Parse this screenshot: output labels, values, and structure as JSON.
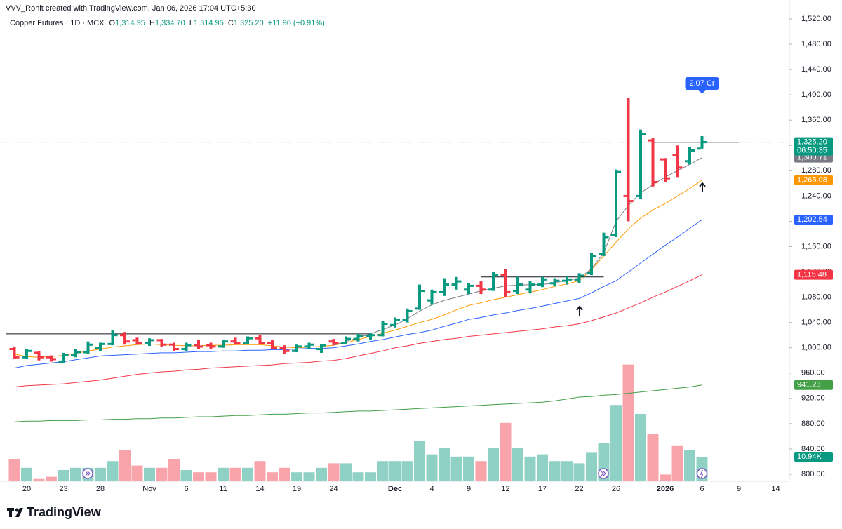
{
  "chart_data": {
    "type": "ohlc",
    "credit": "VVV_Rohit created with TradingView.com, Jan 06, 2026 17:04 UTC+5:30",
    "legend": {
      "symbol": "Copper Futures · 1D · MCX",
      "items": [
        {
          "key": "O",
          "value": "1,314.95"
        },
        {
          "key": "H",
          "value": "1,334.70"
        },
        {
          "key": "L",
          "value": "1,314.95"
        },
        {
          "key": "C",
          "value": "1,325.20"
        }
      ],
      "change": "+11.90 (+0.91%)"
    },
    "brand": "TradingView",
    "up_color": "#089981",
    "down_color": "#f23645",
    "categories": [
      null,
      "20",
      null,
      null,
      "23",
      null,
      null,
      "28",
      null,
      null,
      null,
      "Nov",
      null,
      null,
      "6",
      null,
      null,
      "11",
      null,
      null,
      "14",
      null,
      null,
      "19",
      null,
      null,
      "24",
      null,
      null,
      null,
      null,
      "Dec",
      null,
      null,
      "4",
      null,
      null,
      "9",
      null,
      null,
      "12",
      null,
      null,
      "17",
      null,
      null,
      "22",
      null,
      null,
      "26",
      null,
      null,
      null,
      "2026",
      null,
      null,
      "6",
      null,
      null,
      "9",
      null,
      null,
      "14"
    ],
    "open": [
      998,
      985,
      992,
      985,
      978,
      988,
      993,
      1000,
      1006,
      1020,
      1012,
      1008,
      1012,
      1005,
      998,
      1004,
      1004,
      1002,
      1010,
      1008,
      1015,
      1008,
      1000,
      995,
      1002,
      998,
      1010,
      1008,
      1014,
      1018,
      1020,
      1036,
      1044,
      1062,
      1075,
      1088,
      1100,
      1092,
      1098,
      1092,
      1115,
      1090,
      1092,
      1100,
      1102,
      1106,
      1108,
      1118,
      1148,
      1178,
      1240,
      1240,
      1328,
      1298,
      1305,
      1295,
      1314.95,
      null,
      null,
      null,
      null,
      null,
      null
    ],
    "high": [
      1002,
      998,
      995,
      988,
      992,
      998,
      1010,
      1008,
      1028,
      1025,
      1016,
      1015,
      1014,
      1008,
      1008,
      1012,
      1008,
      1012,
      1016,
      1018,
      1020,
      1012,
      1004,
      1005,
      1008,
      1006,
      1014,
      1018,
      1022,
      1024,
      1042,
      1048,
      1062,
      1100,
      1092,
      1110,
      1112,
      1102,
      1105,
      1120,
      1125,
      1112,
      1106,
      1112,
      1110,
      1114,
      1118,
      1150,
      1182,
      1282,
      1395,
      1345,
      1332,
      1300,
      1320,
      1318,
      1334.7,
      null,
      null,
      null,
      null,
      null,
      null
    ],
    "low": [
      982,
      982,
      980,
      978,
      976,
      985,
      990,
      995,
      1004,
      1005,
      1005,
      1003,
      1002,
      995,
      995,
      998,
      998,
      1000,
      1005,
      1006,
      1005,
      998,
      990,
      993,
      998,
      992,
      1004,
      1006,
      1010,
      1012,
      1018,
      1032,
      1040,
      1060,
      1068,
      1082,
      1092,
      1085,
      1085,
      1090,
      1080,
      1085,
      1086,
      1096,
      1098,
      1100,
      1102,
      1115,
      1145,
      1175,
      1200,
      1235,
      1255,
      1262,
      1270,
      1290,
      1314.95,
      null,
      null,
      null,
      null,
      null,
      null
    ],
    "close": [
      985,
      995,
      985,
      982,
      988,
      993,
      1005,
      1006,
      1020,
      1010,
      1008,
      1012,
      1005,
      998,
      1004,
      1002,
      1002,
      1010,
      1008,
      1015,
      1008,
      1000,
      995,
      1002,
      1005,
      1004,
      1008,
      1014,
      1018,
      1020,
      1038,
      1044,
      1058,
      1090,
      1088,
      1100,
      1105,
      1098,
      1092,
      1115,
      1088,
      1100,
      1100,
      1108,
      1106,
      1108,
      1114,
      1145,
      1175,
      1278,
      1232,
      1338,
      1262,
      1268,
      1285,
      1312,
      1325.2,
      null,
      null,
      null,
      null,
      null,
      null
    ],
    "last_price_label": "1,325.20",
    "countdown": "06:50:35",
    "volume": {
      "values": [
        10,
        6,
        1,
        2,
        5,
        6,
        6,
        6,
        9,
        14,
        7,
        6,
        6,
        10,
        5,
        4,
        4,
        6,
        6,
        6,
        9,
        4,
        6,
        4,
        4,
        6,
        8,
        8,
        4,
        4,
        9,
        9,
        9,
        18,
        12,
        15,
        11,
        11,
        9,
        15,
        26,
        15,
        11,
        12,
        9,
        9,
        8,
        13,
        17,
        34,
        52,
        30,
        21,
        3,
        16,
        14,
        10.94,
        null,
        null,
        null,
        null,
        null,
        null
      ],
      "last_label": "10.94K",
      "callout": "2.07 Cr"
    },
    "lines": [
      {
        "color": "#43a047",
        "last_label": "941.23",
        "values": [
          883,
          884,
          884,
          885,
          885,
          885,
          886,
          886,
          887,
          887,
          888,
          888,
          889,
          889,
          890,
          891,
          891,
          892,
          893,
          893,
          894,
          895,
          895,
          896,
          897,
          897,
          898,
          899,
          900,
          900,
          901,
          902,
          903,
          904,
          905,
          906,
          907,
          908,
          909,
          910,
          911,
          912,
          913,
          914,
          916,
          919,
          922,
          923,
          925,
          926,
          928,
          930,
          932,
          934,
          936,
          938,
          941.23,
          null,
          null,
          null,
          null,
          null,
          null
        ]
      },
      {
        "color": "#f23645",
        "last_label": "1,115.48",
        "values": [
          938,
          940,
          941,
          942,
          943,
          945,
          947,
          949,
          952,
          955,
          958,
          960,
          962,
          963,
          965,
          966,
          968,
          969,
          970,
          971,
          972,
          973,
          975,
          976,
          977,
          979,
          980,
          983,
          987,
          991,
          995,
          1000,
          1003,
          1007,
          1010,
          1013,
          1015,
          1018,
          1020,
          1022,
          1024,
          1026,
          1028,
          1030,
          1033,
          1035,
          1038,
          1043,
          1049,
          1055,
          1063,
          1071,
          1080,
          1088,
          1097,
          1106,
          1115.48,
          null,
          null,
          null,
          null,
          null,
          null
        ]
      },
      {
        "color": "#2962ff",
        "last_label": "1,202.54",
        "values": [
          968,
          972,
          974,
          976,
          978,
          981,
          984,
          987,
          988,
          989,
          990,
          991,
          992,
          992,
          993,
          994,
          994,
          995,
          995,
          996,
          996,
          997,
          997,
          998,
          999,
          999,
          1000,
          1003,
          1006,
          1010,
          1013,
          1017,
          1021,
          1024,
          1028,
          1034,
          1039,
          1045,
          1048,
          1052,
          1055,
          1059,
          1062,
          1066,
          1070,
          1074,
          1078,
          1087,
          1097,
          1106,
          1120,
          1134,
          1148,
          1162,
          1175,
          1189,
          1202.54,
          null,
          null,
          null,
          null,
          null,
          null
        ]
      },
      {
        "color": "#ff9800",
        "last_label": "1,265.08",
        "values": [
          990,
          986,
          985,
          986,
          988,
          991,
          995,
          998,
          1001,
          1003,
          1005,
          1006,
          1005,
          1004,
          1003,
          1003,
          1004,
          1004,
          1005,
          1005,
          1005,
          1003,
          1001,
          1000,
          1001,
          1002,
          1004,
          1008,
          1013,
          1018,
          1023,
          1028,
          1034,
          1040,
          1045,
          1052,
          1060,
          1067,
          1071,
          1076,
          1080,
          1084,
          1088,
          1092,
          1097,
          1101,
          1106,
          1124,
          1145,
          1167,
          1188,
          1205,
          1218,
          1228,
          1240,
          1252,
          1265.08,
          null,
          null,
          null,
          null,
          null,
          null
        ]
      },
      {
        "color": "#787b86",
        "last_label": "1,300.71",
        "values": [
          null,
          null,
          null,
          null,
          null,
          null,
          null,
          null,
          null,
          null,
          null,
          null,
          null,
          null,
          null,
          null,
          null,
          null,
          null,
          null,
          null,
          null,
          null,
          null,
          null,
          null,
          1004,
          1010,
          1016,
          1022,
          1029,
          1036,
          1046,
          1058,
          1068,
          1075,
          1080,
          1085,
          1090,
          1094,
          1098,
          1099,
          1100,
          1100,
          1103,
          1107,
          1110,
          1125,
          1150,
          1200,
          1225,
          1245,
          1258,
          1270,
          1280,
          1290,
          1300.71,
          null,
          null,
          null,
          null,
          null,
          null
        ]
      }
    ],
    "levels": [
      1022,
      1112,
      1325
    ],
    "ylim": [
      800,
      1520
    ],
    "yticks": [
      {
        "value": 800,
        "label": "800.00"
      },
      {
        "value": 840,
        "label": "840.00"
      },
      {
        "value": 880,
        "label": "880.00"
      },
      {
        "value": 920,
        "label": "920.00"
      },
      {
        "value": 960,
        "label": "960.00"
      },
      {
        "value": 1000,
        "label": "1,000.00"
      },
      {
        "value": 1040,
        "label": "1,040.00"
      },
      {
        "value": 1080,
        "label": "1,080.00"
      },
      {
        "value": 1120,
        "label": "1,120.00"
      },
      {
        "value": 1160,
        "label": "1,160.00"
      },
      {
        "value": 1200,
        "label": "1,200.00"
      },
      {
        "value": 1240,
        "label": "1,240.00"
      },
      {
        "value": 1280,
        "label": "1,280.00"
      },
      {
        "value": 1320,
        "label": "1,320.00"
      },
      {
        "value": 1360,
        "label": "1,360.00"
      },
      {
        "value": 1400,
        "label": "1,400.00"
      },
      {
        "value": 1440,
        "label": "1,440.00"
      },
      {
        "value": 1480,
        "label": "1,480.00"
      },
      {
        "value": 1520,
        "label": "1,520.00"
      }
    ],
    "grid": false
  }
}
